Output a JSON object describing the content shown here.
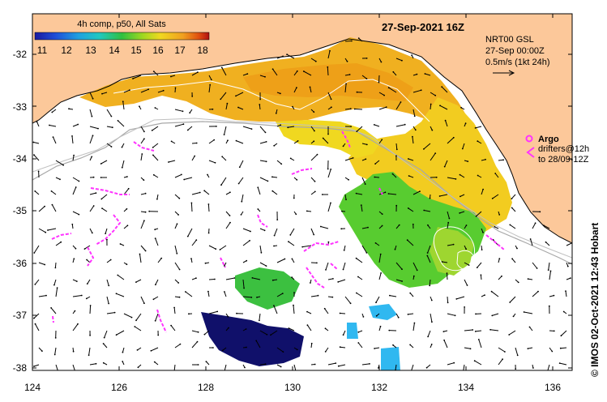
{
  "header": {
    "colorbar_title": "4h comp, p50, All Sats",
    "date_title": "27-Sep-2021 16Z"
  },
  "colorbar": {
    "ticks": [
      "11",
      "12",
      "13",
      "14",
      "15",
      "16",
      "17",
      "18"
    ],
    "colors": [
      "#1a1aa0",
      "#1f4fd8",
      "#1fa0e0",
      "#20c8c0",
      "#30c040",
      "#a0d820",
      "#f0d820",
      "#f0a020",
      "#e05010",
      "#b01010"
    ]
  },
  "current_legend": {
    "line1": "NRT00 GSL",
    "line2": "27-Sep 00:00Z",
    "line3": "0.5m/s (1kt 24h)"
  },
  "argo_legend": {
    "argo_label": "Argo",
    "drifters_line1": "drifters@12h",
    "drifters_line2": "to 28/09-12Z",
    "marker_color": "#ff33ff"
  },
  "axes": {
    "x_ticks": [
      "124",
      "126",
      "128",
      "130",
      "132",
      "134",
      "136"
    ],
    "y_ticks": [
      "-32",
      "-33",
      "-34",
      "-35",
      "-36",
      "-37",
      "-38"
    ]
  },
  "credit": "© IMOS 02-Oct-2021 12:43 Hobart",
  "colors": {
    "land": "#fcc89a",
    "ocean_no_data": "#ffffff",
    "sst_warm": "#f0b020",
    "sst_mid": "#f0d020",
    "sst_green": "#50d030",
    "sst_cold": "#10106a",
    "sst_cyan": "#30b8f0",
    "drifter": "#ff33ff"
  }
}
